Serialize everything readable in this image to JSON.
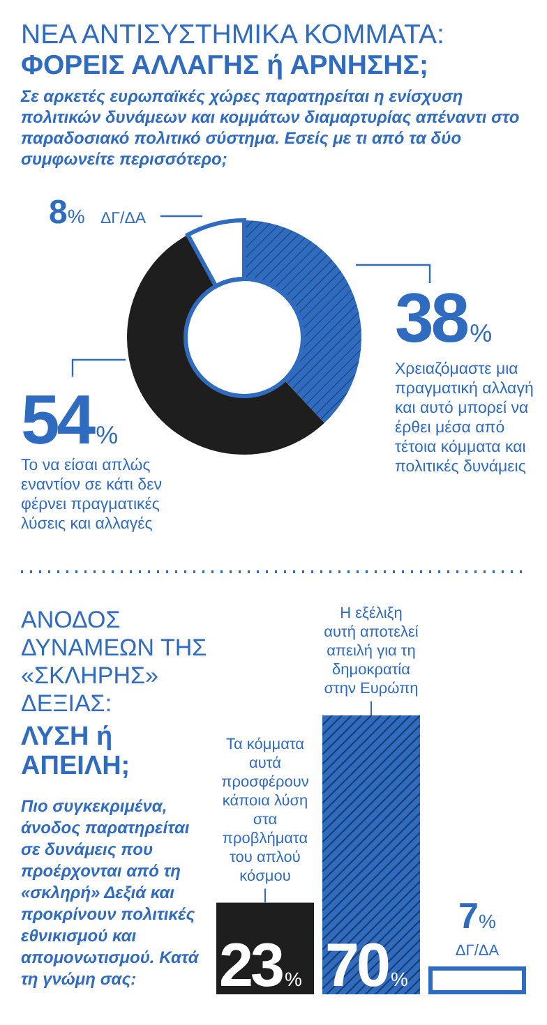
{
  "chart_data": [
    {
      "type": "donut",
      "title": "ΝΕΑ ΑΝΤΙΣΥΣΤΗΜΙΚΑ ΚΟΜΜΑΤΑ:",
      "subtitle": "ΦΟΡΕΙΣ ΑΛΛΑΓΗΣ ή ΑΡΝΗΣΗΣ;",
      "annotations": [
        "Σε αρκετές ευρωπαϊκές χώρες παρατηρείται η ενίσχυση πολιτικών δυνάμεων και κομμάτων διαμαρτυρίας απέναντι στο παραδοσιακό πολιτικό σύστημα. Εσείς με τι από τα δύο συμφωνείτε περισσότερο;"
      ],
      "categories": [
        "Χρειαζόμαστε μια πραγματική αλλαγή και αυτό μπορεί να έρθει μέσα από τέτοια κόμματα και πολιτικές δυνάμεις",
        "Το να είσαι απλώς εναντίον σε κάτι δεν φέρνει πραγματικές λύσεις και αλλαγές",
        "ΔΓ/ΔΑ"
      ],
      "values": [
        38,
        54,
        8
      ],
      "colors": [
        "#2f6bbf",
        "#1e1e1e",
        "#ffffff"
      ],
      "value_labels": [
        "38%",
        "54%",
        "8%"
      ]
    },
    {
      "type": "bar",
      "title": "ΑΝΟΔΟΣ ΔΥΝΑΜΕΩΝ ΤΗΣ «ΣΚΛΗΡΗΣ» ΔΕΞΙΑΣ:",
      "subtitle": "ΛΥΣΗ ή ΑΠΕΙΛΗ;",
      "annotations": [
        "Πιο συγκεκριμένα, άνοδος παρατηρείται σε δυνάμεις που προέρχονται από τη «σκληρή» Δεξιά και προκρίνουν πολιτικές εθνικισμού και απομονωτισμού. Κατά τη γνώμη σας:",
        "Τα κόμματα αυτά προσφέρουν κάποια λύση στα προβλήματα του απλού κόσμου",
        "Η εξέλιξη αυτή αποτελεί απειλή για τη δημοκρατία στην Ευρώπη",
        "ΔΓ/ΔΑ"
      ],
      "categories": [
        null,
        null,
        null
      ],
      "values": [
        23,
        70,
        7
      ],
      "colors": [
        "#1e1e1e",
        "#2f6bbf",
        "#2f6bbf"
      ],
      "value_labels": [
        "23%",
        "70%",
        "7%"
      ]
    }
  ]
}
